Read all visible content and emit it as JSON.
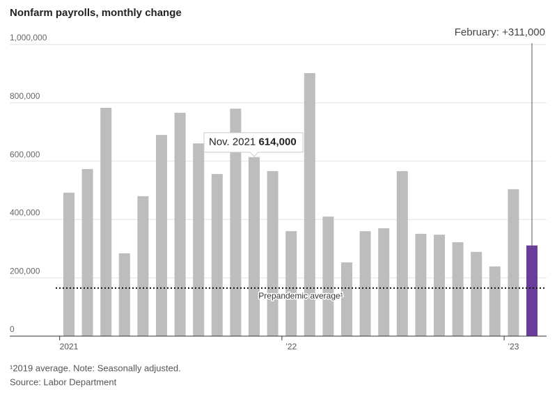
{
  "chart_data": {
    "type": "bar",
    "title": "Nonfarm payrolls, monthly change",
    "categories": [
      "2021",
      null,
      null,
      null,
      null,
      null,
      null,
      null,
      null,
      null,
      null,
      null,
      "’22",
      null,
      null,
      null,
      null,
      null,
      null,
      null,
      null,
      null,
      null,
      null,
      "’23",
      null
    ],
    "values": [
      492000,
      573000,
      783000,
      284000,
      480000,
      690000,
      766000,
      661000,
      556000,
      780000,
      614000,
      566000,
      360000,
      902000,
      410000,
      253000,
      360000,
      370000,
      566000,
      351000,
      348000,
      322000,
      289000,
      239000,
      504000,
      311000
    ],
    "value_labels": [
      null,
      null,
      null,
      null,
      null,
      null,
      null,
      null,
      null,
      null,
      "614,000",
      null,
      null,
      null,
      null,
      null,
      null,
      null,
      null,
      null,
      null,
      null,
      null,
      null,
      null,
      null
    ],
    "colors": [
      "#bdbdbd",
      "#bdbdbd",
      "#bdbdbd",
      "#bdbdbd",
      "#bdbdbd",
      "#bdbdbd",
      "#bdbdbd",
      "#bdbdbd",
      "#bdbdbd",
      "#bdbdbd",
      "#bdbdbd",
      "#bdbdbd",
      "#bdbdbd",
      "#bdbdbd",
      "#bdbdbd",
      "#bdbdbd",
      "#bdbdbd",
      "#bdbdbd",
      "#bdbdbd",
      "#bdbdbd",
      "#bdbdbd",
      "#bdbdbd",
      "#bdbdbd",
      "#bdbdbd",
      "#bdbdbd",
      "#6a3d9a"
    ],
    "ylim": [
      0,
      1000000
    ],
    "yticks": [
      0,
      {
        "value": 200000,
        "label": "200,000"
      },
      {
        "value": 400000,
        "label": "400,000"
      },
      {
        "value": 600000,
        "label": "600,000"
      },
      {
        "value": 800000,
        "label": "800,000"
      },
      {
        "value": 1000000,
        "label": "1,000,000"
      }
    ],
    "grid": true,
    "reference_line": {
      "value": 165000,
      "label": "Prepandemic average¹"
    },
    "tooltip": {
      "index": 10,
      "label": "Nov. 2021"
    },
    "callout": {
      "index": 25,
      "label": "February: +311,000"
    },
    "notes": [
      "¹2019 average. Note: Seasonally adjusted.",
      "Source: Labor Department"
    ]
  }
}
